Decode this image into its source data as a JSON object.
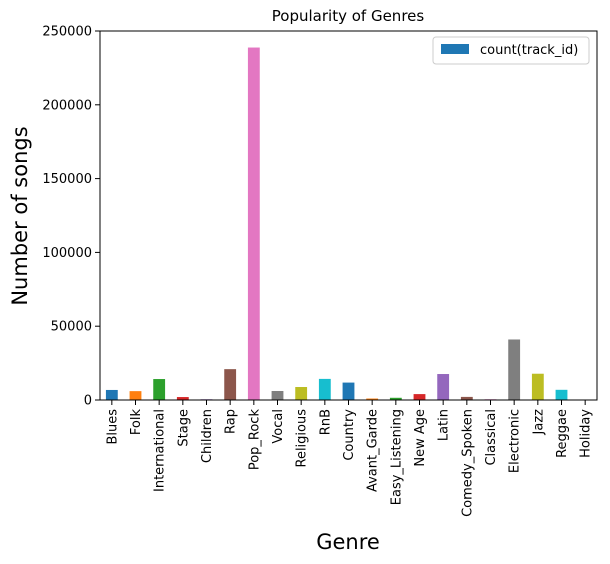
{
  "chart_data": {
    "type": "bar",
    "title": "Popularity of Genres",
    "xlabel": "Genre",
    "ylabel": "Number of songs",
    "ylim": [
      0,
      250000
    ],
    "yticks": [
      0,
      50000,
      100000,
      150000,
      200000,
      250000
    ],
    "legend": {
      "placement": "top-right",
      "entries": [
        "count(track_id)"
      ]
    },
    "grid": false,
    "categories": [
      "Blues",
      "Folk",
      "International",
      "Stage",
      "Children",
      "Rap",
      "Pop_Rock",
      "Vocal",
      "Religious",
      "RnB",
      "Country",
      "Avant_Garde",
      "Easy_Listening",
      "New Age",
      "Latin",
      "Comedy_Spoken",
      "Classical",
      "Electronic",
      "Jazz",
      "Reggae",
      "Holiday"
    ],
    "series": [
      {
        "name": "count(track_id)",
        "values": [
          6800,
          6000,
          14200,
          2000,
          500,
          20900,
          238800,
          6100,
          8800,
          14300,
          11800,
          1000,
          1500,
          4000,
          17600,
          2100,
          500,
          41000,
          17800,
          6900,
          200
        ]
      }
    ],
    "colors": [
      "#1f77b4",
      "#ff7f0e",
      "#2ca02c",
      "#d62728",
      "#9467bd",
      "#8c564b",
      "#e377c2",
      "#7f7f7f",
      "#bcbd22",
      "#17becf"
    ]
  }
}
